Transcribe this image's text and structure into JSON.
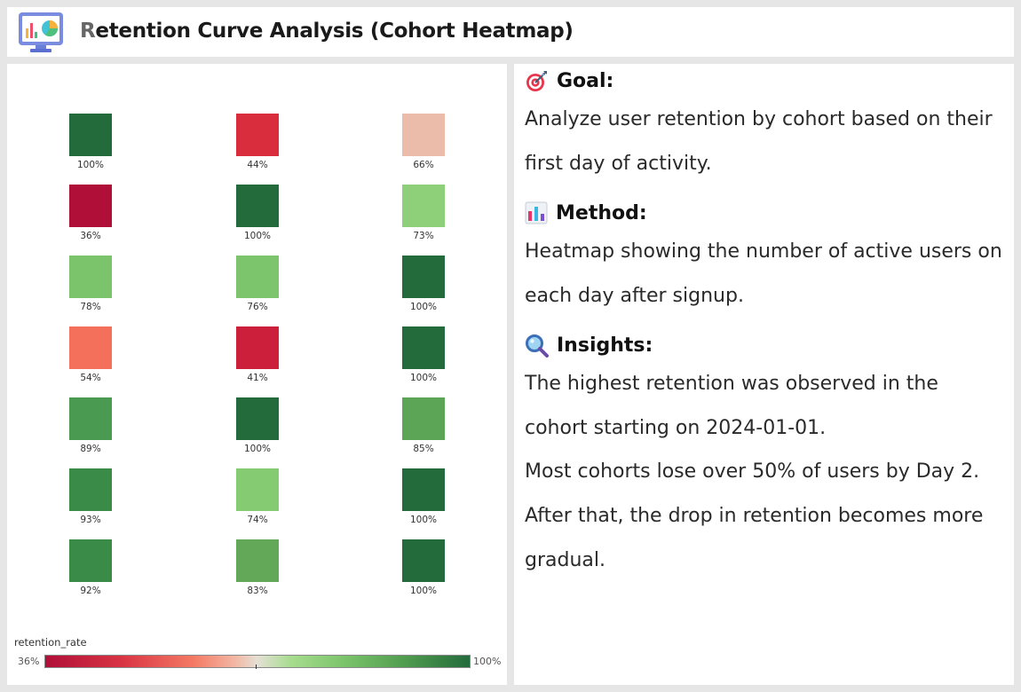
{
  "header": {
    "title_first": "R",
    "title_rest": "etention Curve Analysis (Cohort Heatmap)",
    "icon": "dashboard-monitor-icon"
  },
  "chart_data": {
    "type": "heatmap",
    "title": "",
    "columns": 3,
    "rows": 7,
    "values": [
      [
        100,
        44,
        66
      ],
      [
        36,
        100,
        73
      ],
      [
        78,
        76,
        100
      ],
      [
        54,
        41,
        100
      ],
      [
        89,
        100,
        85
      ],
      [
        93,
        74,
        100
      ],
      [
        92,
        83,
        100
      ]
    ],
    "labels": [
      [
        "100%",
        "44%",
        "66%"
      ],
      [
        "36%",
        "100%",
        "73%"
      ],
      [
        "78%",
        "76%",
        "100%"
      ],
      [
        "54%",
        "41%",
        "100%"
      ],
      [
        "89%",
        "100%",
        "85%"
      ],
      [
        "93%",
        "74%",
        "100%"
      ],
      [
        "92%",
        "83%",
        "100%"
      ]
    ],
    "cell_colors": [
      [
        "#246b3c",
        "#d92d3d",
        "#ebbcaa"
      ],
      [
        "#b00f38",
        "#246b3c",
        "#8ed07a"
      ],
      [
        "#7bc46b",
        "#7dc56c",
        "#246b3c"
      ],
      [
        "#f4705b",
        "#cc1f3c",
        "#246b3c"
      ],
      [
        "#4b9a52",
        "#246b3c",
        "#5ca456"
      ],
      [
        "#3a8a48",
        "#84cb72",
        "#246b3c"
      ],
      [
        "#3a8a48",
        "#63a858",
        "#246b3c"
      ]
    ],
    "color_scale": {
      "field": "retention_rate",
      "min_label": "36%",
      "max_label": "100%",
      "min": 36,
      "max": 100,
      "low_color": "#b00f38",
      "high_color": "#246b3c"
    }
  },
  "goal": {
    "icon": "target-icon",
    "heading": "Goal:",
    "text": "Analyze user retention by cohort based on their first day of activity."
  },
  "method": {
    "icon": "bar-chart-icon",
    "heading": "Method:",
    "text": "Heatmap showing the number of active users on each day after signup."
  },
  "insights": {
    "icon": "magnifier-icon",
    "heading": "Insights:",
    "line1": "The highest retention was observed in the cohort starting on 2024-01-01.",
    "line2": "Most cohorts lose over 50% of users by Day 2.",
    "line3": "After that, the drop in retention becomes more gradual."
  }
}
